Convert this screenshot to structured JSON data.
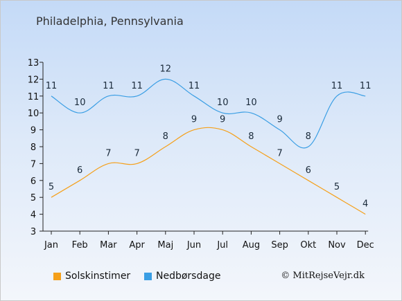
{
  "title": "Philadelphia, Pennsylvania",
  "copyright": "© MitRejseVejr.dk",
  "chart_data": {
    "type": "line",
    "categories": [
      "Jan",
      "Feb",
      "Mar",
      "Apr",
      "Maj",
      "Jun",
      "Jul",
      "Aug",
      "Sep",
      "Okt",
      "Nov",
      "Dec"
    ],
    "ylim": [
      3,
      13
    ],
    "yticks": [
      3,
      4,
      5,
      6,
      7,
      8,
      9,
      10,
      11,
      12,
      13
    ],
    "series": [
      {
        "name": "Solskinstimer",
        "color": "#f5a01a",
        "values": [
          5,
          6,
          7,
          7,
          8,
          9,
          9,
          8,
          7,
          6,
          5,
          4
        ]
      },
      {
        "name": "Nedbørsdage",
        "color": "#3a9ee4",
        "values": [
          11,
          10,
          11,
          11,
          12,
          11,
          10,
          10,
          9,
          8,
          11,
          11
        ]
      }
    ],
    "grid": false,
    "legend_position": "bottom-left"
  }
}
